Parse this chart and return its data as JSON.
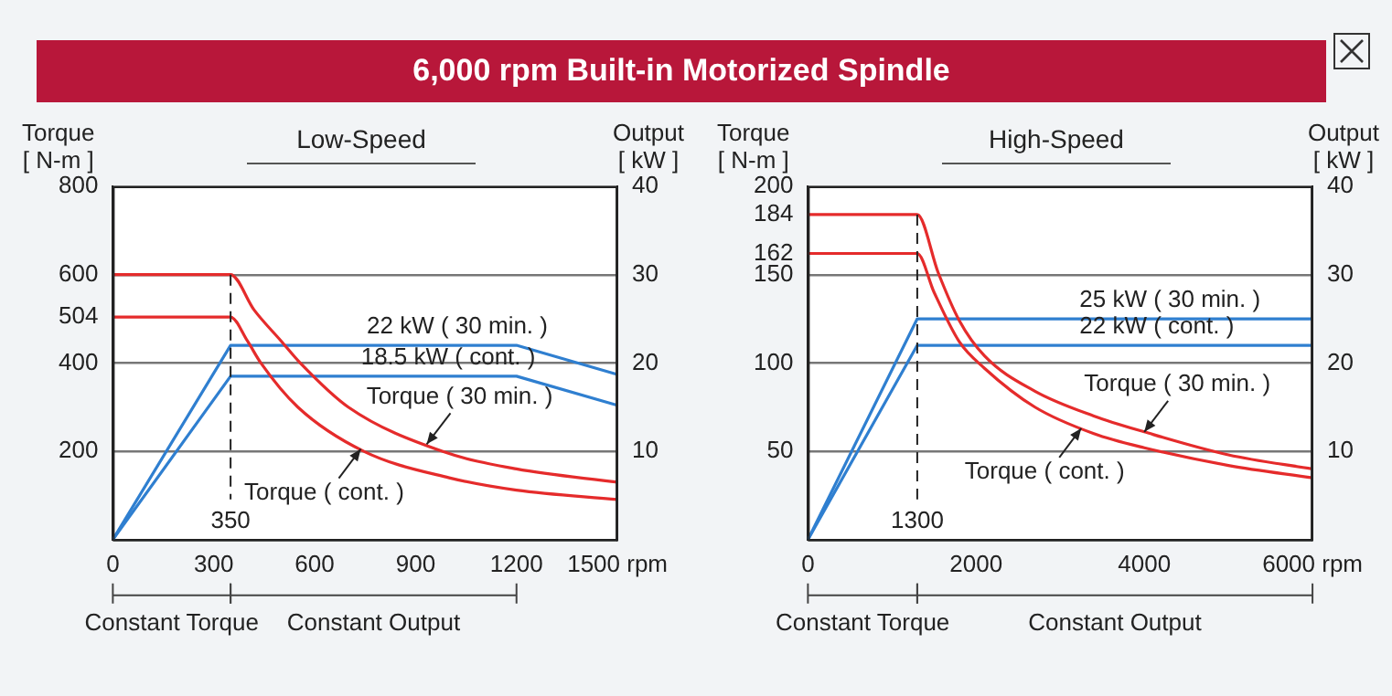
{
  "chart_data": [
    {
      "type": "line",
      "title": "6,000 rpm Built-in Motorized Spindle",
      "subtitle": "Low-Speed",
      "ylabel": "Torque\n[ N-m ]",
      "y2label": "Output\n[ kW ]",
      "xlim": [
        0,
        1500
      ],
      "xticks": [
        0,
        300,
        600,
        900,
        1200,
        {
          "value": 1500,
          "label": "1500 rpm"
        }
      ],
      "ylim": [
        0,
        800
      ],
      "yticks": [
        200,
        400,
        504,
        600,
        800
      ],
      "y2lim": [
        0,
        40
      ],
      "y2ticks": [
        10,
        20,
        30,
        40
      ],
      "grid": "y2",
      "marker": "none",
      "line_style": "solid",
      "series": [
        {
          "color": "#e52b2b",
          "x": [
            0,
            350,
            420,
            500,
            557,
            700,
            979,
            1200,
            1500
          ],
          "values": [
            600,
            600,
            520,
            450,
            400,
            300,
            200,
            160,
            130
          ]
        },
        {
          "color": "#e52b2b",
          "x": [
            0,
            350,
            400,
            440,
            550,
            746,
            1000,
            1200,
            1500
          ],
          "values": [
            504,
            504,
            450,
            400,
            300,
            200,
            140,
            112,
            91
          ]
        },
        {
          "color": "#2f7fd0",
          "axis": "y2",
          "x": [
            0,
            350,
            1200,
            1500
          ],
          "values": [
            0,
            22,
            22,
            18.7
          ]
        },
        {
          "color": "#2f7fd0",
          "axis": "y2",
          "x": [
            0,
            350,
            1200,
            1500
          ],
          "values": [
            0,
            18.5,
            18.5,
            15.2
          ]
        }
      ],
      "ref_lines": [
        {
          "axis": "x",
          "value": 350,
          "label": "350",
          "line_style": "dashed"
        }
      ],
      "annotations": [
        "Constant Torque",
        "Constant Output",
        {
          "text": "22 kW ( 30 min. )",
          "x": 1024,
          "y": 440
        },
        {
          "text": "18.5 kW ( cont. )",
          "x": 997,
          "y": 370
        },
        {
          "text": "Torque ( 30 min. )",
          "x": 933,
          "y": 216
        },
        {
          "text": "Torque ( cont. )",
          "x": 737,
          "y": 205
        }
      ]
    },
    {
      "type": "line",
      "subtitle": "High-Speed",
      "ylabel": "Torque\n[ N-m ]",
      "y2label": "Output\n[ kW ]",
      "xlim": [
        0,
        6000
      ],
      "xticks": [
        0,
        2000,
        4000,
        {
          "value": 6000,
          "label": "6000 rpm"
        }
      ],
      "ylim": [
        0,
        200
      ],
      "yticks": [
        50,
        100,
        150,
        162,
        184,
        200
      ],
      "y2lim": [
        0,
        40
      ],
      "y2ticks": [
        10,
        20,
        30,
        40
      ],
      "grid": "y2",
      "marker": "none",
      "line_style": "solid",
      "series": [
        {
          "color": "#e52b2b",
          "x": [
            0,
            1300,
            1550,
            1800,
            2100,
            2700,
            3400,
            4000,
            5000,
            6000
          ],
          "values": [
            184,
            184,
            151,
            124,
            104,
            84,
            70,
            61,
            48,
            40
          ]
        },
        {
          "color": "#e52b2b",
          "x": [
            0,
            1300,
            1500,
            1800,
            2100,
            2700,
            3400,
            4000,
            5000,
            6000
          ],
          "values": [
            162,
            162,
            140,
            112,
            97,
            75,
            60,
            52,
            42,
            35
          ]
        },
        {
          "color": "#2f7fd0",
          "axis": "y2",
          "x": [
            0,
            1300,
            6000
          ],
          "values": [
            0,
            25,
            25
          ]
        },
        {
          "color": "#2f7fd0",
          "axis": "y2",
          "x": [
            0,
            1300,
            6000
          ],
          "values": [
            0,
            22,
            22
          ]
        }
      ],
      "ref_lines": [
        {
          "axis": "x",
          "value": 1300,
          "label": "1300",
          "line_style": "dashed"
        }
      ],
      "annotations": [
        "Constant Torque",
        "Constant Output",
        {
          "text": "25 kW ( 30 min. )",
          "x": 4305,
          "y": 125
        },
        {
          "text": "22 kW ( cont. )",
          "x": 4148,
          "y": 110
        },
        {
          "text": "Torque ( 30 min. )",
          "x": 4000,
          "y": 61
        },
        {
          "text": "Torque ( cont. )",
          "x": 3250,
          "y": 63
        }
      ]
    }
  ]
}
